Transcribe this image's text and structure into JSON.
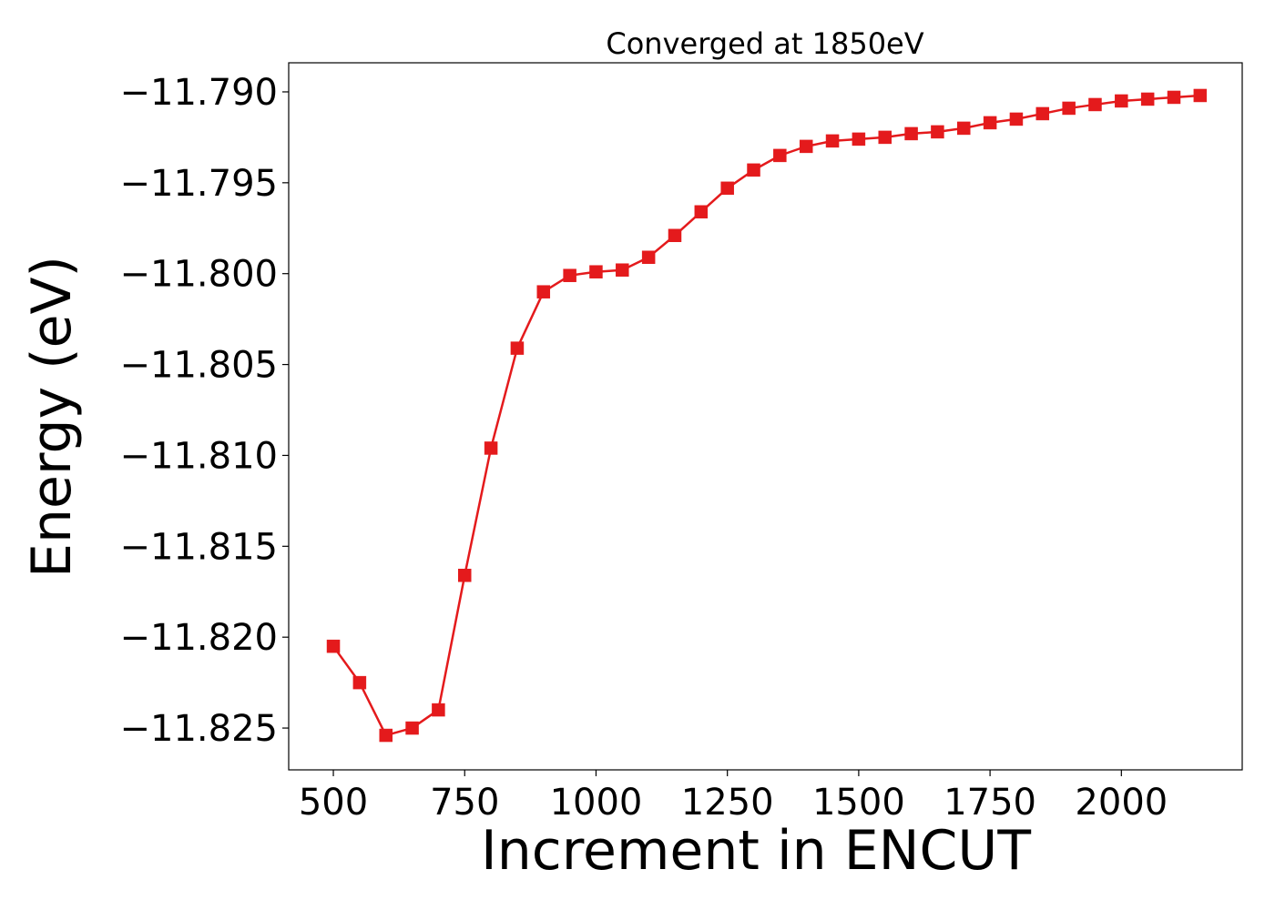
{
  "chart_data": {
    "type": "line",
    "title": "Converged at 1850eV",
    "xlabel": "Increment in ENCUT",
    "ylabel": "Energy (eV)",
    "xlim": [
      415,
      2230
    ],
    "ylim": [
      -11.8273,
      -11.7884
    ],
    "xticks": [
      500,
      750,
      1000,
      1250,
      1500,
      1750,
      2000
    ],
    "xtick_labels": [
      "500",
      "750",
      "1000",
      "1250",
      "1500",
      "1750",
      "2000"
    ],
    "yticks": [
      -11.79,
      -11.795,
      -11.8,
      -11.805,
      -11.81,
      -11.815,
      -11.82,
      -11.825
    ],
    "ytick_labels": [
      "−11.790",
      "−11.795",
      "−11.800",
      "−11.805",
      "−11.810",
      "−11.815",
      "−11.820",
      "−11.825"
    ],
    "grid": false,
    "legend": false,
    "marker": "square",
    "color": "#e41a1c",
    "series": [
      {
        "x": [
          500,
          550,
          600,
          650,
          700,
          750,
          800,
          850,
          900,
          950,
          1000,
          1050,
          1100,
          1150,
          1200,
          1250,
          1300,
          1350,
          1400,
          1450,
          1500,
          1550,
          1600,
          1650,
          1700,
          1750,
          1800,
          1850,
          1900,
          1950,
          2000,
          2050,
          2100,
          2150
        ],
        "y": [
          -11.8205,
          -11.8225,
          -11.8254,
          -11.825,
          -11.824,
          -11.8166,
          -11.8096,
          -11.8041,
          -11.801,
          -11.8001,
          -11.7999,
          -11.7998,
          -11.7991,
          -11.7979,
          -11.7966,
          -11.7953,
          -11.7943,
          -11.7935,
          -11.793,
          -11.7927,
          -11.7926,
          -11.7925,
          -11.7923,
          -11.7922,
          -11.792,
          -11.7917,
          -11.7915,
          -11.7912,
          -11.7909,
          -11.7907,
          -11.7905,
          -11.7904,
          -11.7903,
          -11.7902
        ]
      }
    ]
  }
}
